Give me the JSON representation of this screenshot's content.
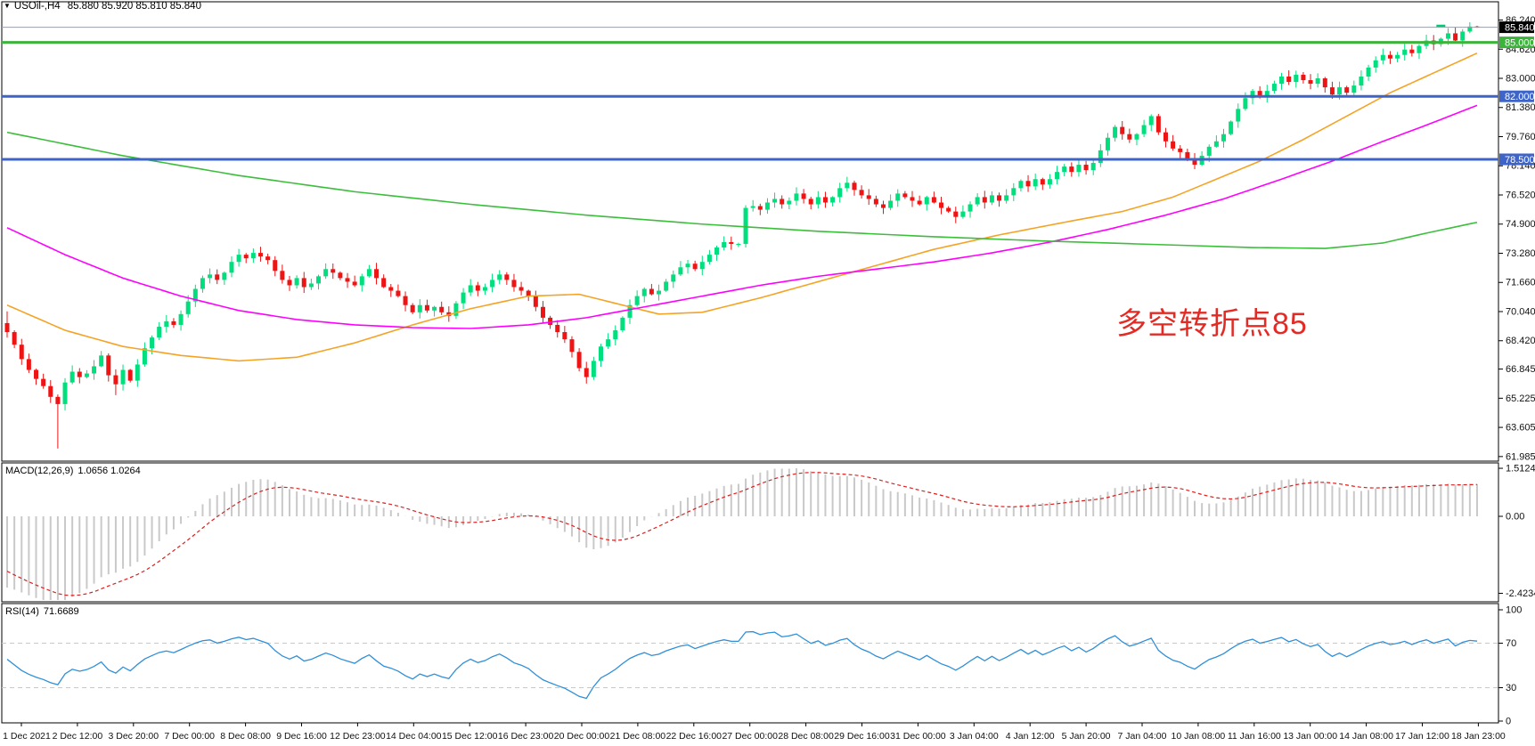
{
  "window": {
    "symbol_title": "USOil-,H4",
    "ohlc_text": "85.880 85.920 85.810 85.840",
    "dropdown_icon": "down-triangle-icon"
  },
  "colors": {
    "background": "#FFFFFF",
    "panel_border": "#000000",
    "bull": "#00DF7D",
    "bear": "#EE1414",
    "ma_fast": "#F5A325",
    "ma_mid": "#FF00FF",
    "ma_slow": "#3CBE3C",
    "hline_blue": "#3E64C8",
    "hline_green": "#3CB43C",
    "bid_line": "#9AA0A6",
    "bid_tag_bg": "#000000",
    "tag_text": "#FFFFFF",
    "macd_bar": "#C9C9C9",
    "macd_signal": "#DC2020",
    "rsi_line": "#2F8FD8",
    "rsi_level": "#C8C8C8",
    "axis_text": "#111111"
  },
  "annotation": {
    "text": "多空转折点85",
    "color": "#E32B25"
  },
  "current_price": {
    "label": "85.840",
    "value": 85.84
  },
  "buy_marker": {
    "index": 198,
    "price": 85.92,
    "color": "#00C873"
  },
  "horizontal_lines": [
    {
      "label": "85.000",
      "price": 85.0,
      "color": "#3CB43C",
      "width": 3
    },
    {
      "label": "82.000",
      "price": 82.0,
      "color": "#3E64C8",
      "width": 3
    },
    {
      "label": "78.500",
      "price": 78.5,
      "color": "#3E64C8",
      "width": 3
    }
  ],
  "chart_data": {
    "type": "candlestick",
    "symbol": "USOil-",
    "timeframe": "H4",
    "title": "USOil-,H4 85.880 85.920 85.810 85.840",
    "price_ticks": [
      "86.240",
      "84.620",
      "83.000",
      "81.380",
      "79.760",
      "78.140",
      "76.520",
      "74.900",
      "73.280",
      "71.660",
      "70.040",
      "68.420",
      "66.845",
      "65.225",
      "63.605",
      "61.985"
    ],
    "x_labels": [
      "1 Dec 2021",
      "2 Dec 12:00",
      "3 Dec 20:00",
      "7 Dec 00:00",
      "8 Dec 08:00",
      "9 Dec 16:00",
      "12 Dec 23:00",
      "14 Dec 04:00",
      "15 Dec 12:00",
      "16 Dec 23:00",
      "20 Dec 00:00",
      "21 Dec 08:00",
      "22 Dec 16:00",
      "27 Dec 00:00",
      "28 Dec 08:00",
      "29 Dec 16:00",
      "31 Dec 00:00",
      "3 Jan 04:00",
      "4 Jan 12:00",
      "5 Jan 20:00",
      "7 Jan 04:00",
      "10 Jan 08:00",
      "11 Jan 16:00",
      "13 Jan 00:00",
      "14 Jan 08:00",
      "17 Jan 12:00",
      "18 Jan 23:00"
    ],
    "candles": {
      "first_open": 69.4,
      "closes": [
        68.9,
        68.2,
        67.4,
        66.8,
        66.3,
        65.9,
        65.3,
        64.9,
        66.1,
        66.7,
        66.4,
        66.6,
        67.0,
        67.6,
        66.5,
        66.0,
        66.8,
        66.2,
        67.1,
        68.0,
        68.6,
        69.2,
        69.5,
        69.3,
        69.9,
        70.6,
        71.3,
        71.9,
        72.1,
        71.8,
        72.2,
        72.8,
        73.2,
        73.0,
        73.3,
        73.1,
        72.9,
        72.3,
        71.8,
        71.5,
        71.9,
        71.4,
        71.6,
        72.0,
        72.4,
        72.2,
        71.9,
        71.7,
        71.5,
        72.0,
        72.4,
        71.9,
        71.4,
        71.2,
        70.9,
        70.4,
        70.0,
        70.4,
        70.1,
        70.3,
        70.0,
        69.8,
        70.5,
        71.1,
        71.5,
        71.2,
        71.4,
        71.8,
        72.1,
        71.8,
        71.4,
        71.2,
        70.9,
        70.3,
        69.7,
        69.3,
        68.9,
        68.5,
        67.8,
        66.9,
        66.4,
        67.3,
        68.1,
        68.5,
        69.0,
        69.7,
        70.4,
        70.9,
        71.3,
        71.0,
        71.2,
        71.7,
        72.1,
        72.5,
        72.7,
        72.4,
        72.8,
        73.2,
        73.6,
        73.9,
        73.8,
        73.8,
        75.8,
        75.9,
        75.7,
        76.1,
        76.3,
        76.0,
        76.2,
        76.6,
        76.3,
        76.0,
        76.4,
        76.1,
        76.4,
        76.9,
        77.2,
        76.8,
        76.5,
        76.3,
        76.0,
        75.8,
        76.2,
        76.6,
        76.4,
        76.2,
        76.0,
        76.4,
        76.1,
        75.8,
        75.6,
        75.3,
        75.6,
        76.0,
        76.4,
        76.1,
        76.5,
        76.2,
        76.5,
        76.9,
        77.3,
        77.0,
        77.4,
        77.1,
        77.4,
        77.8,
        78.1,
        77.8,
        78.2,
        77.9,
        78.3,
        79.0,
        79.7,
        80.3,
        79.9,
        79.6,
        79.9,
        80.4,
        80.9,
        80.0,
        79.5,
        79.1,
        78.9,
        78.5,
        78.2,
        78.7,
        79.2,
        79.5,
        79.9,
        80.6,
        81.3,
        81.9,
        82.3,
        82.0,
        82.3,
        82.7,
        83.1,
        82.8,
        83.2,
        82.9,
        82.7,
        83.0,
        82.5,
        82.1,
        82.5,
        82.2,
        82.6,
        83.1,
        83.6,
        84.0,
        84.3,
        84.1,
        84.3,
        84.6,
        84.4,
        84.8,
        85.1,
        84.9,
        85.2,
        85.5,
        85.1,
        85.6,
        85.88,
        85.84
      ],
      "overrides": {
        "0": {
          "high": 70.05
        },
        "7": {
          "low": 62.43
        },
        "15": {
          "low": 65.4
        },
        "34": {
          "high": 73.55
        },
        "80": {
          "low": 66.04
        },
        "102": {
          "high": 75.95,
          "low": 73.6
        },
        "158": {
          "high": 81.0
        },
        "164": {
          "low": 77.95
        },
        "203": {
          "high": 85.92,
          "low": 85.81
        }
      }
    },
    "moving_averages": [
      {
        "name": "fast-ma",
        "color": "#F5A325",
        "points": [
          [
            0,
            70.4
          ],
          [
            8,
            69.0
          ],
          [
            16,
            68.1
          ],
          [
            24,
            67.6
          ],
          [
            32,
            67.3
          ],
          [
            40,
            67.5
          ],
          [
            48,
            68.3
          ],
          [
            56,
            69.3
          ],
          [
            64,
            70.2
          ],
          [
            72,
            70.9
          ],
          [
            79,
            71.0
          ],
          [
            84,
            70.5
          ],
          [
            90,
            69.9
          ],
          [
            96,
            70.0
          ],
          [
            104,
            70.8
          ],
          [
            112,
            71.7
          ],
          [
            120,
            72.6
          ],
          [
            128,
            73.5
          ],
          [
            137,
            74.3
          ],
          [
            146,
            75.0
          ],
          [
            154,
            75.6
          ],
          [
            161,
            76.4
          ],
          [
            167,
            77.4
          ],
          [
            173,
            78.4
          ],
          [
            179,
            79.6
          ],
          [
            185,
            80.9
          ],
          [
            191,
            82.2
          ],
          [
            197,
            83.3
          ],
          [
            203,
            84.4
          ]
        ]
      },
      {
        "name": "mid-ma",
        "color": "#FF00FF",
        "points": [
          [
            0,
            74.7
          ],
          [
            8,
            73.2
          ],
          [
            16,
            71.9
          ],
          [
            24,
            70.9
          ],
          [
            32,
            70.1
          ],
          [
            40,
            69.6
          ],
          [
            48,
            69.3
          ],
          [
            56,
            69.15
          ],
          [
            64,
            69.1
          ],
          [
            72,
            69.3
          ],
          [
            80,
            69.7
          ],
          [
            88,
            70.3
          ],
          [
            96,
            70.9
          ],
          [
            104,
            71.5
          ],
          [
            112,
            72.0
          ],
          [
            120,
            72.4
          ],
          [
            128,
            72.8
          ],
          [
            136,
            73.3
          ],
          [
            144,
            73.9
          ],
          [
            152,
            74.6
          ],
          [
            160,
            75.4
          ],
          [
            168,
            76.3
          ],
          [
            176,
            77.4
          ],
          [
            183,
            78.4
          ],
          [
            190,
            79.5
          ],
          [
            196,
            80.4
          ],
          [
            203,
            81.5
          ]
        ]
      },
      {
        "name": "slow-ma",
        "color": "#3CBE3C",
        "points": [
          [
            0,
            80.0
          ],
          [
            16,
            78.7
          ],
          [
            32,
            77.6
          ],
          [
            48,
            76.7
          ],
          [
            64,
            76.0
          ],
          [
            80,
            75.4
          ],
          [
            96,
            74.9
          ],
          [
            112,
            74.5
          ],
          [
            128,
            74.2
          ],
          [
            144,
            73.95
          ],
          [
            160,
            73.75
          ],
          [
            172,
            73.6
          ],
          [
            182,
            73.55
          ],
          [
            190,
            73.85
          ],
          [
            196,
            74.4
          ],
          [
            203,
            75.0
          ]
        ]
      }
    ],
    "macd": {
      "title": "MACD(12,26,9)",
      "values_text": "1.0656 1.0264",
      "main_value": 1.0656,
      "signal_value": 1.0264,
      "fast": 12,
      "slow": 26,
      "signal_period": 9,
      "axis_labels": [
        [
          "1.5124",
          1.5124
        ],
        [
          "0.00",
          0
        ],
        [
          "-2.4234",
          -2.4234
        ]
      ],
      "seed_fast": 71.5,
      "seed_slow": 73.7,
      "seed_signal": -1.6
    },
    "rsi": {
      "title": "RSI(14)",
      "value_text": "71.6689",
      "value": 71.6689,
      "period": 14,
      "axis_labels": [
        [
          "100",
          100
        ],
        [
          "70",
          70
        ],
        [
          "30",
          30
        ],
        [
          "0",
          0
        ]
      ],
      "levels": [
        70,
        30
      ],
      "seed_gain": 0.3,
      "seed_loss": 0.24
    }
  }
}
